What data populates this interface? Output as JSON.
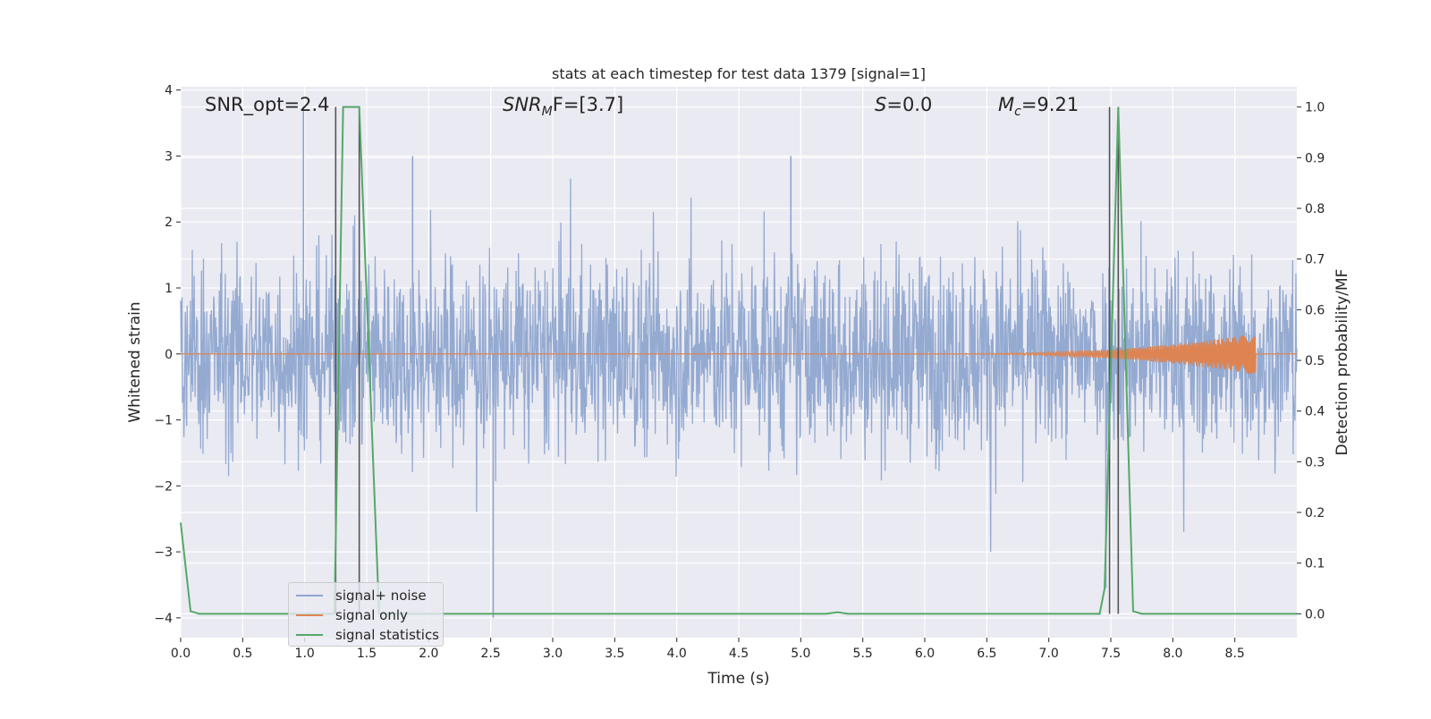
{
  "chart_data": {
    "type": "line",
    "title": "stats at each timestep for test data 1379 [signal=1]",
    "xlabel": "Time (s)",
    "ylabel_left": "Whitened strain",
    "ylabel_right": "Detection probability/MF",
    "xlim": [
      0.0,
      9.0
    ],
    "ylim_left": [
      -4.3,
      4.05
    ],
    "ylim_right": [
      -0.047,
      1.04
    ],
    "x_ticks": [
      "0.0",
      "0.5",
      "1.0",
      "1.5",
      "2.0",
      "2.5",
      "3.0",
      "3.5",
      "4.0",
      "4.5",
      "5.0",
      "5.5",
      "6.0",
      "6.5",
      "7.0",
      "7.5",
      "8.0",
      "8.5"
    ],
    "y_ticks_left": [
      "−4",
      "−3",
      "−2",
      "−1",
      "0",
      "1",
      "2",
      "3",
      "4"
    ],
    "y_ticks_right": [
      "0.0",
      "0.1",
      "0.2",
      "0.3",
      "0.4",
      "0.5",
      "0.6",
      "0.7",
      "0.8",
      "0.9",
      "1.0"
    ],
    "grid": true,
    "legend_position": "lower-left",
    "annotations": {
      "snr_opt": "SNR_opt=2.4",
      "snr_mf_main": "SNR",
      "snr_mf_sub": "M",
      "snr_mf_rest": "F=[3.7]",
      "s_main": "S",
      "s_rest": "=0.0",
      "mc_main": "M",
      "mc_sub": "c",
      "mc_rest": "=9.21"
    },
    "series": [
      {
        "name": "signal+ noise",
        "color": "#8fa6cf",
        "description_values": "whitened strain, dense noise with envelope about -1.7 to 1.9, spikes up to ~3.8 and down to ~-4.0",
        "envelope": {
          "upper": 1.3,
          "lower": -1.0,
          "peak_max": 3.75,
          "peak_min": -4.0
        },
        "spikes": [
          {
            "x": 0.99,
            "y": 3.75
          },
          {
            "x": 1.87,
            "y": 3.0
          },
          {
            "x": 2.52,
            "y": -4.0
          },
          {
            "x": 4.92,
            "y": 3.0
          },
          {
            "x": 7.49,
            "y": 3.7
          },
          {
            "x": 7.46,
            "y": -3.55
          }
        ]
      },
      {
        "name": "signal only",
        "color": "#dd8452",
        "chirp": {
          "start": 5.6,
          "end": 8.67,
          "max_amplitude": 0.32
        }
      },
      {
        "name": "signal statistics",
        "color": "#55a868",
        "axis": "right",
        "points": [
          [
            0.0,
            0.18
          ],
          [
            0.08,
            0.005
          ],
          [
            0.15,
            0.0
          ],
          [
            1.24,
            0.0
          ],
          [
            1.31,
            1.0
          ],
          [
            1.44,
            1.0
          ],
          [
            1.6,
            0.0
          ],
          [
            5.2,
            0.0
          ],
          [
            5.3,
            0.003
          ],
          [
            5.38,
            0.0
          ],
          [
            7.41,
            0.0
          ],
          [
            7.45,
            0.05
          ],
          [
            7.56,
            1.0
          ],
          [
            7.68,
            0.005
          ],
          [
            7.75,
            0.0
          ],
          [
            9.0,
            0.0
          ]
        ]
      }
    ],
    "vertical_lines": [
      {
        "x": 1.25,
        "color": "#555555"
      },
      {
        "x": 1.44,
        "color": "#555555"
      },
      {
        "x": 7.49,
        "color": "#555555"
      },
      {
        "x": 7.56,
        "color": "#555555"
      }
    ]
  }
}
